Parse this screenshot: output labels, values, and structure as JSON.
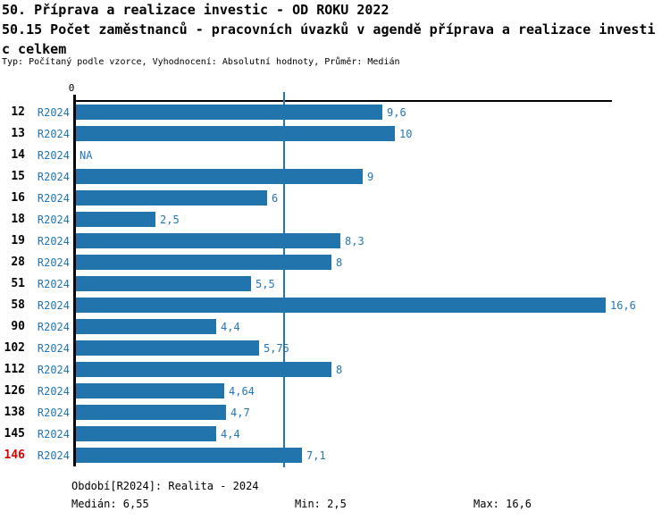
{
  "header": {
    "title_line1": "50. Příprava a realizace investic - OD ROKU 2022",
    "title_line2": "50.15 Počet zaměstnanců - pracovních úvazků v agendě příprava a realizace investi",
    "title_line3": "c celkem",
    "subtitle": "Typ: Počítaný podle vzorce, Vyhodnocení: Absolutní hodnoty, Průměr: Medián"
  },
  "chart_data": {
    "type": "bar",
    "orientation": "horizontal",
    "axis_origin_label": "0",
    "series_label": "R2024",
    "categories": [
      "12",
      "13",
      "14",
      "15",
      "16",
      "18",
      "19",
      "28",
      "51",
      "58",
      "90",
      "102",
      "112",
      "126",
      "138",
      "145",
      "146"
    ],
    "values": [
      9.6,
      10,
      null,
      9,
      6,
      2.5,
      8.3,
      8,
      5.5,
      16.6,
      4.4,
      5.75,
      8,
      4.64,
      4.7,
      4.4,
      7.1
    ],
    "value_labels": [
      "9,6",
      "10",
      "NA",
      "9",
      "6",
      "2,5",
      "8,3",
      "8",
      "5,5",
      "16,6",
      "4,4",
      "5,75",
      "8",
      "4,64",
      "4,7",
      "4,4",
      "7,1"
    ],
    "na_label": "NA",
    "highlighted_category": "146",
    "median": 6.55,
    "xlim": [
      0,
      16.85
    ],
    "grid": false,
    "legend": "none",
    "bar_color": "#2274AD",
    "median_line_color": "#2176B4",
    "label_color": "#2277BB",
    "highlight_color": "#DD0000"
  },
  "footer": {
    "period": "Období[R2024]: Realita - 2024",
    "median": "Medián: 6,55",
    "min": "Min: 2,5",
    "max": "Max: 16,6"
  }
}
